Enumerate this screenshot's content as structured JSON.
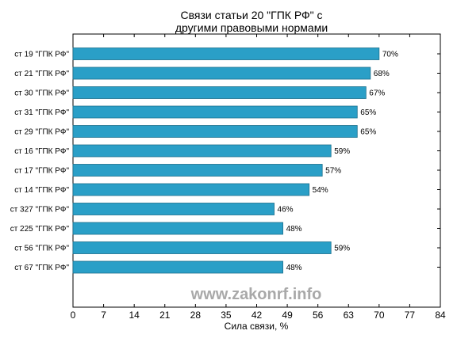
{
  "watermark": "www.zakonrf.info",
  "chart_data": {
    "type": "bar",
    "orientation": "horizontal",
    "title_lines": [
      "Связи статьи 20 \"ГПК РФ\" с",
      "другими правовыми нормами"
    ],
    "xlabel": "Сила связи, %",
    "ylabel": "",
    "xlim": [
      0,
      84
    ],
    "xticks": [
      0,
      7,
      14,
      21,
      28,
      35,
      42,
      49,
      56,
      63,
      70,
      77,
      84
    ],
    "grid": false,
    "bar_color": "#2a9fc7",
    "categories": [
      "ст 19 \"ГПК РФ\"",
      "ст 21 \"ГПК РФ\"",
      "ст 30 \"ГПК РФ\"",
      "ст 31 \"ГПК РФ\"",
      "ст 29 \"ГПК РФ\"",
      "ст 16 \"ГПК РФ\"",
      "ст 17 \"ГПК РФ\"",
      "ст 14 \"ГПК РФ\"",
      "ст 327 \"ГПК РФ\"",
      "ст 225 \"ГПК РФ\"",
      "ст 56 \"ГПК РФ\"",
      "ст 67 \"ГПК РФ\""
    ],
    "values": [
      70,
      68,
      67,
      65,
      65,
      59,
      57,
      54,
      46,
      48,
      59,
      48
    ],
    "value_labels": [
      "70%",
      "68%",
      "67%",
      "65%",
      "65%",
      "59%",
      "57%",
      "54%",
      "46%",
      "48%",
      "59%",
      "48%"
    ]
  }
}
